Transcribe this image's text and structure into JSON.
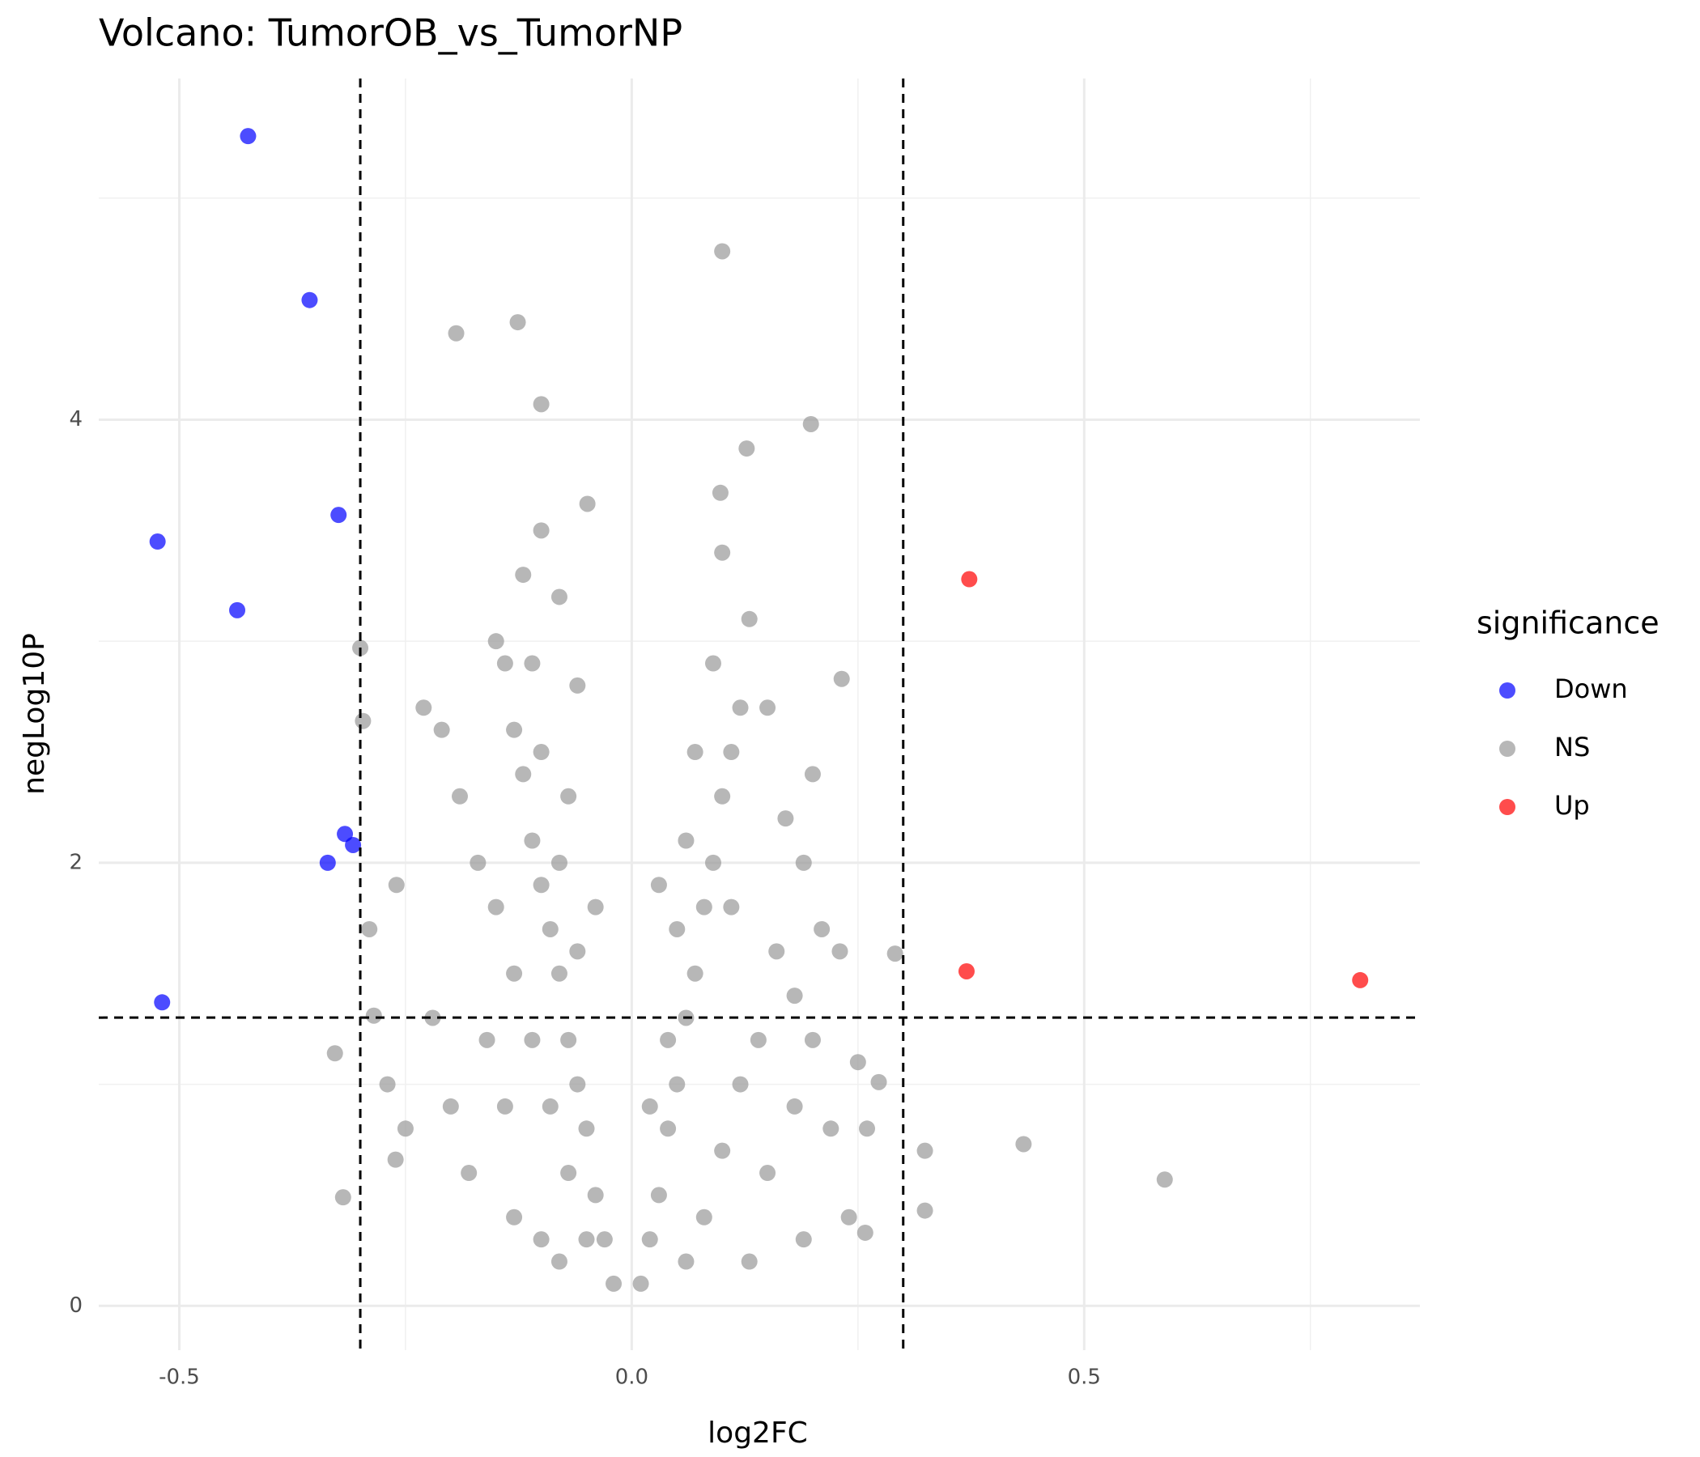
{
  "chart_data": {
    "type": "scatter",
    "title": "Volcano: TumorOB_vs_TumorNP",
    "x_label": "log2FC",
    "y_label": "negLog10P",
    "legend_title": "significance",
    "legend_position": "right",
    "xlim": [
      -0.589,
      0.871
    ],
    "ylim": [
      -0.2,
      5.54
    ],
    "xticks": [
      -0.5,
      {
        "value": 0,
        "label": "0.0"
      },
      0.5
    ],
    "yticks": [
      0,
      2,
      4
    ],
    "x_minor": [
      -0.25,
      0.25,
      0.75
    ],
    "y_minor": [
      1,
      3,
      5
    ],
    "grid": true,
    "vlines": [
      -0.3,
      0.3
    ],
    "hline": 1.301,
    "series": [
      {
        "name": "Down",
        "color": "#0000ff",
        "x": [
          -0.424,
          -0.356,
          -0.324,
          -0.524,
          -0.436,
          -0.317,
          -0.308,
          -0.336,
          -0.519
        ],
        "values": [
          5.28,
          4.54,
          3.57,
          3.45,
          3.14,
          2.13,
          2.08,
          2.0,
          1.37
        ]
      },
      {
        "name": "NS",
        "color": "#999999",
        "x": [
          0.1,
          -0.126,
          -0.194,
          -0.1,
          0.198,
          0.127,
          0.098,
          -0.049,
          -0.3,
          -0.297,
          0.589,
          0.433,
          0.324,
          0.324,
          0.291,
          0.232,
          -0.319,
          -0.285,
          -0.328,
          -0.261,
          0.273,
          0.258,
          -0.02,
          -0.03,
          -0.04,
          -0.05,
          -0.06,
          -0.07,
          -0.08,
          -0.09,
          -0.1,
          -0.11,
          -0.12,
          -0.13,
          -0.14,
          -0.15,
          -0.05,
          -0.07,
          -0.09,
          -0.11,
          -0.13,
          -0.15,
          -0.17,
          -0.19,
          -0.21,
          -0.23,
          -0.06,
          -0.08,
          -0.1,
          -0.11,
          -0.12,
          -0.1,
          -0.08,
          -0.06,
          -0.04,
          -0.07,
          -0.16,
          -0.2,
          -0.22,
          -0.25,
          -0.27,
          -0.26,
          -0.29,
          -0.18,
          -0.13,
          -0.1,
          -0.08,
          -0.14,
          0.01,
          0.02,
          0.03,
          0.04,
          0.05,
          0.06,
          0.07,
          0.08,
          0.09,
          0.1,
          0.11,
          0.12,
          0.04,
          0.05,
          0.06,
          0.07,
          0.09,
          0.1,
          0.13,
          0.15,
          0.17,
          0.19,
          0.2,
          0.21,
          0.23,
          0.16,
          0.14,
          0.12,
          0.1,
          0.08,
          0.06,
          0.15,
          0.18,
          0.2,
          0.22,
          0.24,
          0.26,
          0.19,
          0.13,
          0.03,
          0.11,
          0.18,
          0.25,
          0.02
        ],
        "values": [
          4.76,
          4.44,
          4.39,
          4.07,
          3.98,
          3.87,
          3.67,
          3.62,
          2.97,
          2.64,
          0.57,
          0.73,
          0.7,
          0.43,
          1.59,
          2.83,
          0.49,
          1.31,
          1.14,
          0.66,
          1.01,
          0.33,
          0.1,
          0.3,
          0.5,
          0.8,
          1.0,
          1.2,
          1.5,
          1.7,
          1.9,
          2.1,
          2.4,
          2.6,
          2.9,
          3.0,
          0.3,
          0.6,
          0.9,
          1.2,
          1.5,
          1.8,
          2.0,
          2.3,
          2.6,
          2.7,
          1.6,
          2.0,
          2.5,
          2.9,
          3.3,
          3.5,
          3.2,
          2.8,
          1.8,
          2.3,
          1.2,
          0.9,
          1.3,
          0.8,
          1.0,
          1.9,
          1.7,
          0.6,
          0.4,
          0.3,
          0.2,
          0.9,
          0.1,
          0.3,
          0.5,
          0.8,
          1.0,
          1.3,
          1.5,
          1.8,
          2.0,
          2.3,
          2.5,
          2.7,
          1.2,
          1.7,
          2.1,
          2.5,
          2.9,
          3.4,
          3.1,
          2.7,
          2.2,
          2.0,
          2.4,
          1.7,
          1.6,
          1.6,
          1.2,
          1.0,
          0.7,
          0.4,
          0.2,
          0.6,
          0.9,
          1.2,
          0.8,
          0.4,
          0.8,
          0.3,
          0.2,
          1.9,
          1.8,
          1.4,
          1.1,
          0.9
        ]
      },
      {
        "name": "Up",
        "color": "#ff0000",
        "x": [
          0.373,
          0.37,
          0.805
        ],
        "values": [
          3.28,
          1.51,
          1.47
        ]
      }
    ]
  }
}
